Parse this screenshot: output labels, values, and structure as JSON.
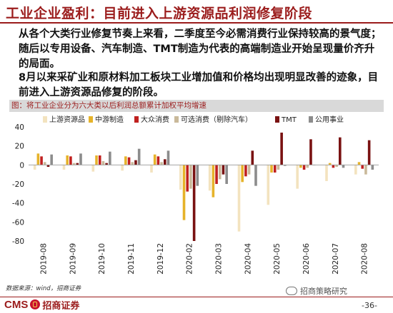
{
  "slide": {
    "title": "工业企业盈利：目前进入上游资源品利润修复阶段",
    "paragraph1": "从各个大类行业修复节奏上来看，二季度至今必需消费行业保持较高的景气度；随后以专用设备、汽车制造、TMT制造为代表的高端制造业开始呈现量价齐升的局面。",
    "paragraph2": "8月以来采矿业和原材料加工板块工业增加值和价格均出现明显改善的迹象，目前进入上游资源品修复的阶段。",
    "caption": "图：将工业企业分为六大类以后利润总额累计加权平均增速",
    "source": "数据来源：wind，招商证券",
    "logo_text": "CMS",
    "logo_cn": "招商证券",
    "watermark": "招商策略研究",
    "page_number": "-36-"
  },
  "chart_data": {
    "type": "bar",
    "categories": [
      "2019-08",
      "2019-09",
      "2019-10",
      "2019-11",
      "2019-12",
      "2020-02",
      "2020-03",
      "2020-04",
      "2020-05",
      "2020-06",
      "2020-07",
      "2020-08"
    ],
    "ylim": [
      -80,
      40
    ],
    "yticks": [
      -80,
      -60,
      -40,
      -20,
      0,
      20,
      40
    ],
    "legend_position": "top",
    "series": [
      {
        "name": "上游资源品",
        "color": "#f3e3bf",
        "values": [
          -5,
          -5,
          -7,
          -6,
          -8,
          -26,
          -27,
          -70,
          -42,
          -25,
          -17,
          -10
        ]
      },
      {
        "name": "中游制造",
        "color": "#e6b32a",
        "values": [
          12,
          10,
          10,
          9,
          11,
          -58,
          -34,
          -18,
          -8,
          -3,
          2,
          3
        ]
      },
      {
        "name": "大众消费",
        "color": "#c0201f",
        "values": [
          9,
          9,
          10,
          8,
          9,
          -28,
          -20,
          -12,
          -8,
          -5,
          -3,
          -4
        ]
      },
      {
        "name": "可选消费（剔除汽车）",
        "color": "#c9b99a",
        "values": [
          3,
          2,
          4,
          3,
          3,
          -25,
          -15,
          -10,
          -5,
          -3,
          -2,
          -10
        ]
      },
      {
        "name": "TMT",
        "color": "#7a1212",
        "values": [
          -2,
          2,
          2,
          5,
          6,
          -80,
          -10,
          15,
          34,
          27,
          29,
          26
        ]
      },
      {
        "name": "公用事业",
        "color": "#8c8c8c",
        "values": [
          11,
          12,
          14,
          17,
          15,
          -22,
          -20,
          -22,
          -1,
          0,
          -3,
          -5
        ]
      }
    ]
  }
}
